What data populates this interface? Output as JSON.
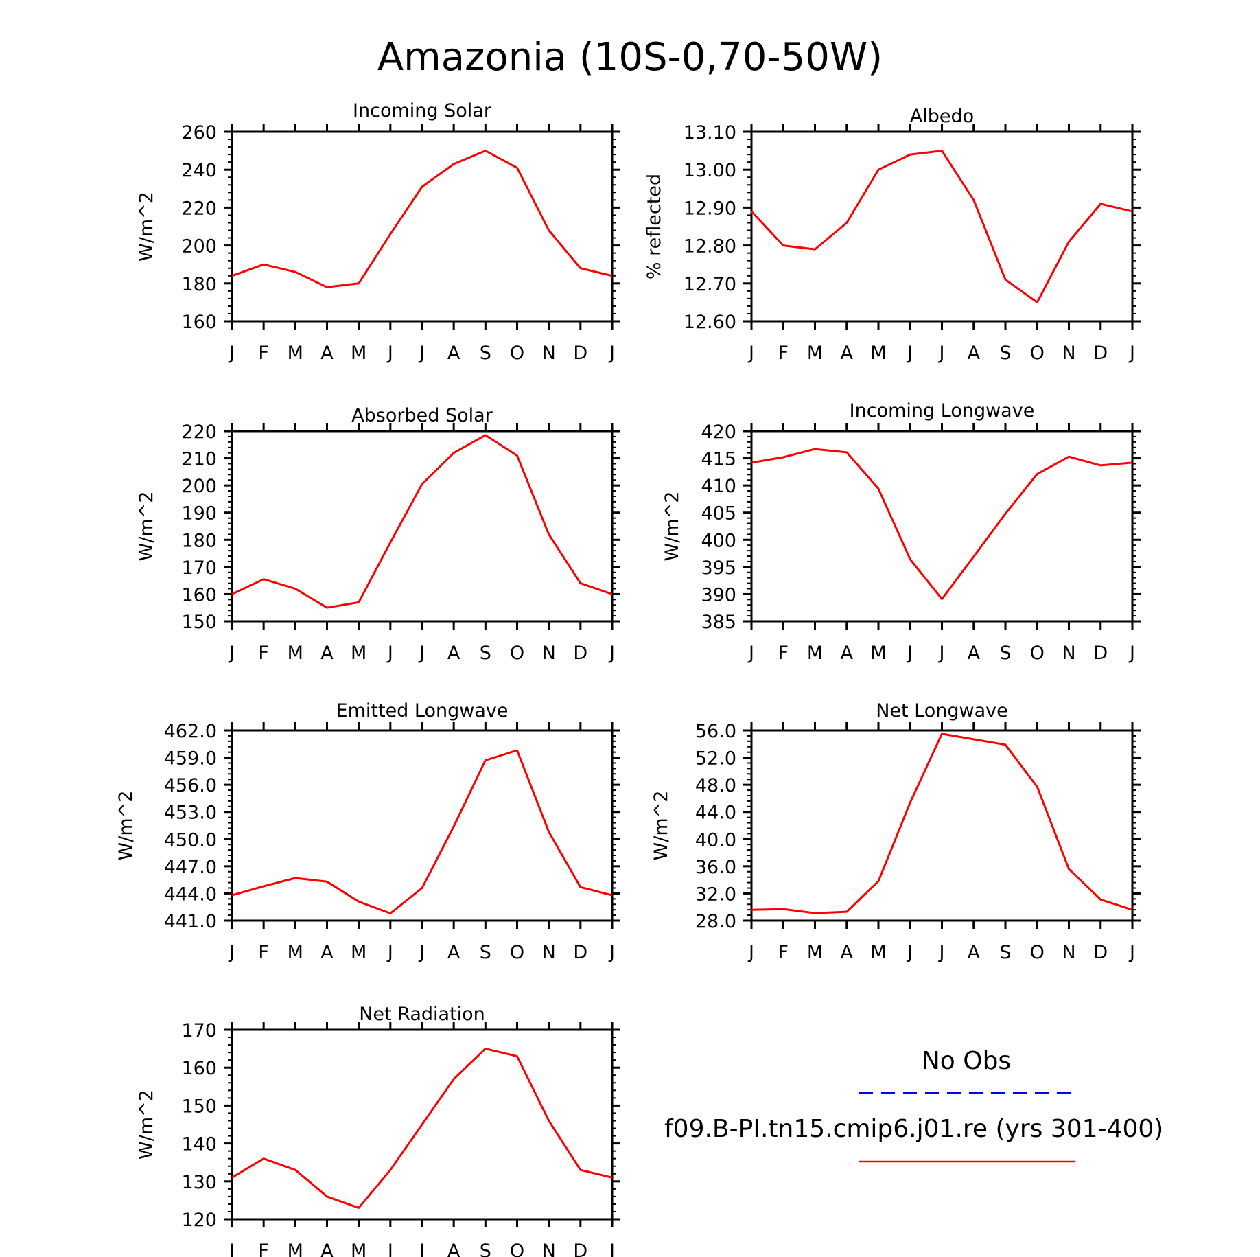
{
  "title": "Amazonia (10S-0,70-50W)",
  "month_labels": [
    "J",
    "F",
    "M",
    "A",
    "M",
    "J",
    "J",
    "A",
    "S",
    "O",
    "N",
    "D",
    "J"
  ],
  "legend": {
    "obs_label": "No Obs",
    "obs_color": "#0000ff",
    "model_label": "f09.B-PI.tn15.cmip6.j01.re (yrs 301-400)",
    "model_color": "#ff0000"
  },
  "chart_data": [
    {
      "type": "line",
      "title": "Incoming Solar",
      "ylabel": "W/m^2",
      "ylim": [
        160,
        260
      ],
      "yticks": [
        "160",
        "180",
        "200",
        "220",
        "240",
        "260"
      ],
      "series": [
        {
          "values": [
            184,
            190,
            186,
            178,
            180,
            206,
            231,
            243,
            250,
            241,
            208,
            188,
            184
          ]
        }
      ]
    },
    {
      "type": "line",
      "title": "Albedo",
      "ylabel": "% reflected",
      "ylim": [
        12.6,
        13.1
      ],
      "yticks": [
        "12.60",
        "12.70",
        "12.80",
        "12.90",
        "13.00",
        "13.10"
      ],
      "series": [
        {
          "values": [
            12.89,
            12.8,
            12.79,
            12.86,
            13.0,
            13.04,
            13.05,
            12.92,
            12.71,
            12.65,
            12.81,
            12.91,
            12.89
          ]
        }
      ]
    },
    {
      "type": "line",
      "title": "Absorbed Solar",
      "ylabel": "W/m^2",
      "ylim": [
        150,
        220
      ],
      "yticks": [
        "150",
        "160",
        "170",
        "180",
        "190",
        "200",
        "210",
        "220"
      ],
      "series": [
        {
          "values": [
            160,
            165.5,
            162,
            155,
            157,
            179,
            200.5,
            212,
            218.5,
            211,
            182,
            164,
            160
          ]
        }
      ]
    },
    {
      "type": "line",
      "title": "Incoming Longwave",
      "ylabel": "W/m^2",
      "ylim": [
        385,
        420
      ],
      "yticks": [
        "385",
        "390",
        "395",
        "400",
        "405",
        "410",
        "415",
        "420"
      ],
      "series": [
        {
          "values": [
            414.2,
            415.2,
            416.7,
            416.1,
            409.4,
            396.4,
            389.1,
            396.9,
            404.8,
            412.1,
            415.3,
            413.7,
            414.2
          ]
        }
      ]
    },
    {
      "type": "line",
      "title": "Emitted Longwave",
      "ylabel": "W/m^2",
      "ylim": [
        441,
        462
      ],
      "yticks": [
        "441.0",
        "444.0",
        "447.0",
        "450.0",
        "453.0",
        "456.0",
        "459.0",
        "462.0"
      ],
      "series": [
        {
          "values": [
            443.8,
            444.8,
            445.7,
            445.3,
            443.1,
            441.8,
            444.6,
            451.4,
            458.7,
            459.8,
            450.8,
            444.7,
            443.8
          ]
        }
      ]
    },
    {
      "type": "line",
      "title": "Net Longwave",
      "ylabel": "W/m^2",
      "ylim": [
        28,
        56
      ],
      "yticks": [
        "28.0",
        "32.0",
        "36.0",
        "40.0",
        "44.0",
        "48.0",
        "52.0",
        "56.0"
      ],
      "series": [
        {
          "values": [
            29.6,
            29.7,
            29.1,
            29.3,
            33.8,
            45.4,
            55.5,
            54.7,
            53.9,
            47.7,
            35.6,
            31.1,
            29.6
          ]
        }
      ]
    },
    {
      "type": "line",
      "title": "Net Radiation",
      "ylabel": "W/m^2",
      "ylim": [
        120,
        170
      ],
      "yticks": [
        "120",
        "130",
        "140",
        "150",
        "160",
        "170"
      ],
      "series": [
        {
          "values": [
            131,
            136,
            133,
            126,
            123,
            133,
            145,
            157,
            165,
            163,
            146,
            133,
            131
          ]
        }
      ]
    }
  ]
}
